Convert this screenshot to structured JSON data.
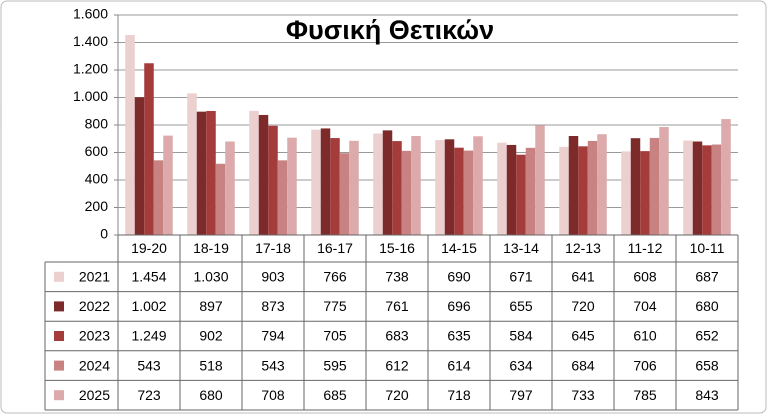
{
  "chart_data": {
    "type": "bar",
    "title": "Φυσική Θετικών",
    "categories": [
      "19-20",
      "18-19",
      "17-18",
      "16-17",
      "15-16",
      "14-15",
      "13-14",
      "12-13",
      "11-12",
      "10-11"
    ],
    "series": [
      {
        "name": "2021",
        "color": "#eccfcf",
        "values": [
          1454,
          1030,
          903,
          766,
          738,
          690,
          671,
          641,
          608,
          687
        ],
        "value_labels": [
          "1.454",
          "1.030",
          "903",
          "766",
          "738",
          "690",
          "671",
          "641",
          "608",
          "687"
        ]
      },
      {
        "name": "2022",
        "color": "#7d2a2a",
        "values": [
          1002,
          897,
          873,
          775,
          761,
          696,
          655,
          720,
          704,
          680
        ],
        "value_labels": [
          "1.002",
          "897",
          "873",
          "775",
          "761",
          "696",
          "655",
          "720",
          "704",
          "680"
        ]
      },
      {
        "name": "2023",
        "color": "#a43c3c",
        "values": [
          1249,
          902,
          794,
          705,
          683,
          635,
          584,
          645,
          610,
          652
        ],
        "value_labels": [
          "1.249",
          "902",
          "794",
          "705",
          "683",
          "635",
          "584",
          "645",
          "610",
          "652"
        ]
      },
      {
        "name": "2024",
        "color": "#c98282",
        "values": [
          543,
          518,
          543,
          595,
          612,
          614,
          634,
          684,
          706,
          658
        ],
        "value_labels": [
          "543",
          "518",
          "543",
          "595",
          "612",
          "614",
          "634",
          "684",
          "706",
          "658"
        ]
      },
      {
        "name": "2025",
        "color": "#dcaaaa",
        "values": [
          723,
          680,
          708,
          685,
          720,
          718,
          797,
          733,
          785,
          843
        ],
        "value_labels": [
          "723",
          "680",
          "708",
          "685",
          "720",
          "718",
          "797",
          "733",
          "785",
          "843"
        ]
      }
    ],
    "ylim": [
      0,
      1600
    ],
    "yticks": [
      0,
      200,
      400,
      600,
      800,
      {
        "value": 1000,
        "label": "1.000"
      },
      {
        "value": 1200,
        "label": "1.200"
      },
      {
        "value": 1400,
        "label": "1.400"
      },
      {
        "value": 1600,
        "label": "1.600"
      }
    ],
    "grid": true
  }
}
